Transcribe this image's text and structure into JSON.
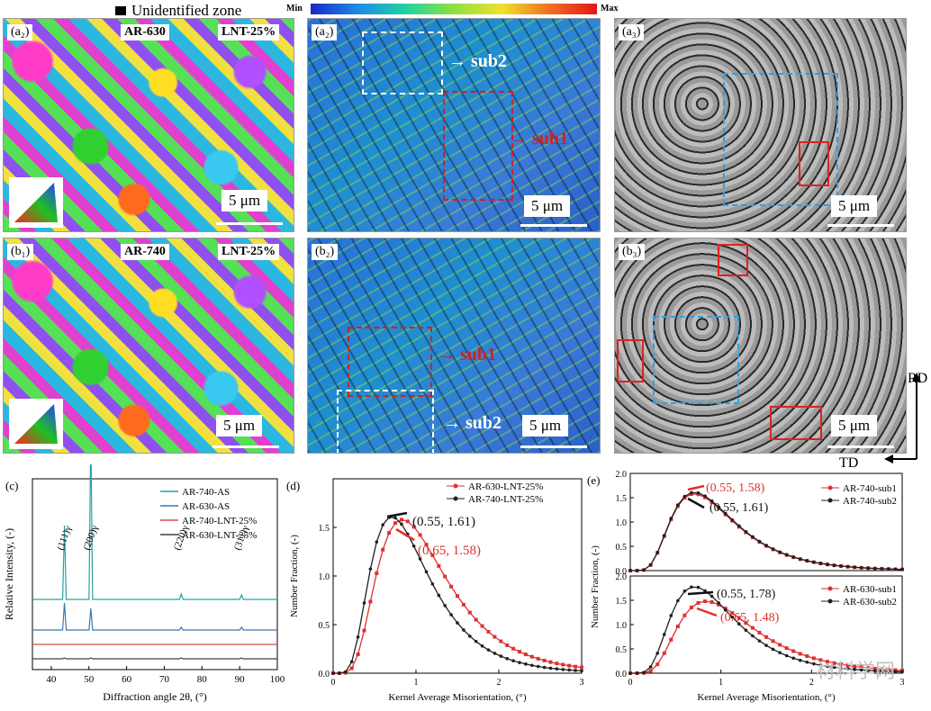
{
  "legend": {
    "unidentified": "Unidentified zone",
    "colorbar_min": "Min",
    "colorbar_max": "Max"
  },
  "panels": {
    "a2": {
      "label": "(a₂)",
      "tag1": "AR-630",
      "tag2": "LNT-25%",
      "scale": "5 μm"
    },
    "b1": {
      "label": "(b₁)",
      "tag1": "AR-740",
      "tag2": "LNT-25%",
      "scale": "5 μm"
    },
    "a2k": {
      "label": "(a₂)",
      "sub2": "sub2",
      "sub1": "sub1",
      "scale": "5 μm"
    },
    "b2": {
      "label": "(b₂)",
      "sub1": "sub1",
      "sub2": "sub2",
      "scale": "5 μm"
    },
    "a3": {
      "label": "(a₃)",
      "scale": "5 μm"
    },
    "b3": {
      "label": "(b₃)",
      "scale": "5 μm"
    }
  },
  "axes_labels": {
    "rd": "RD",
    "td": "TD"
  },
  "chart_data": [
    {
      "id": "c",
      "type": "line",
      "panel_label": "(c)",
      "xlabel": "Diffraction angle 2θ, (°)",
      "ylabel": "Relative Intensity, (-)",
      "xlim": [
        35,
        100
      ],
      "xticks": [
        40,
        50,
        60,
        70,
        80,
        90,
        100
      ],
      "legend": [
        "AR-740-AS",
        "AR-630-AS",
        "AR-740-LNT-25%",
        "AR-630-LNT-25%"
      ],
      "colors": [
        "#2aa0a0",
        "#3a78b0",
        "#d05040",
        "#404040"
      ],
      "peaks": [
        {
          "label": "(111)γ",
          "x": 43.5
        },
        {
          "label": "(200)γ",
          "x": 50.5
        },
        {
          "label": "(220)γ",
          "x": 74.5
        },
        {
          "label": "(311)γ",
          "x": 90.5
        }
      ]
    },
    {
      "id": "d",
      "type": "line",
      "panel_label": "(d)",
      "xlabel": "Kernel Average Misorientation, (°)",
      "ylabel": "Number Fraction, (-)",
      "xlim": [
        0,
        3
      ],
      "ylim": [
        0,
        2.0
      ],
      "xticks": [
        0,
        1,
        2,
        3
      ],
      "yticks": [
        0,
        0.5,
        1.0,
        1.5
      ],
      "series": [
        {
          "name": "AR-630-LNT-25%",
          "color": "#e03030",
          "peak": [
            0.65,
            1.58
          ]
        },
        {
          "name": "AR-740-LNT-25%",
          "color": "#202020",
          "peak": [
            0.55,
            1.61
          ]
        }
      ],
      "annotations": [
        "(0.55, 1.61)",
        "(0.65, 1.58)"
      ]
    },
    {
      "id": "e1",
      "type": "line",
      "panel_label": "(e)",
      "xlabel": "",
      "ylabel": "Number Fraction, (-)",
      "xlim": [
        0,
        3
      ],
      "ylim": [
        0,
        2.0
      ],
      "yticks": [
        0,
        0.5,
        1.0,
        1.5,
        2.0
      ],
      "series": [
        {
          "name": "AR-740-sub1",
          "color": "#e03030",
          "peak": [
            0.55,
            1.58
          ]
        },
        {
          "name": "AR-740-sub2",
          "color": "#202020",
          "peak": [
            0.55,
            1.61
          ]
        }
      ],
      "annotations": [
        "(0.55, 1.58)",
        "(0.55, 1.61)"
      ]
    },
    {
      "id": "e2",
      "type": "line",
      "panel_label": "",
      "xlabel": "Kernel Average Misorientation, (°)",
      "ylabel": "",
      "xlim": [
        0,
        3
      ],
      "ylim": [
        0,
        2.0
      ],
      "xticks": [
        0,
        1,
        2,
        3
      ],
      "yticks": [
        0,
        0.5,
        1.0,
        1.5,
        2.0
      ],
      "series": [
        {
          "name": "AR-630-sub1",
          "color": "#e03030",
          "peak": [
            0.65,
            1.48
          ]
        },
        {
          "name": "AR-630-sub2",
          "color": "#202020",
          "peak": [
            0.55,
            1.78
          ]
        }
      ],
      "annotations": [
        "(0.55, 1.78)",
        "(0.65, 1.48)"
      ]
    }
  ],
  "watermark": "材料学网"
}
